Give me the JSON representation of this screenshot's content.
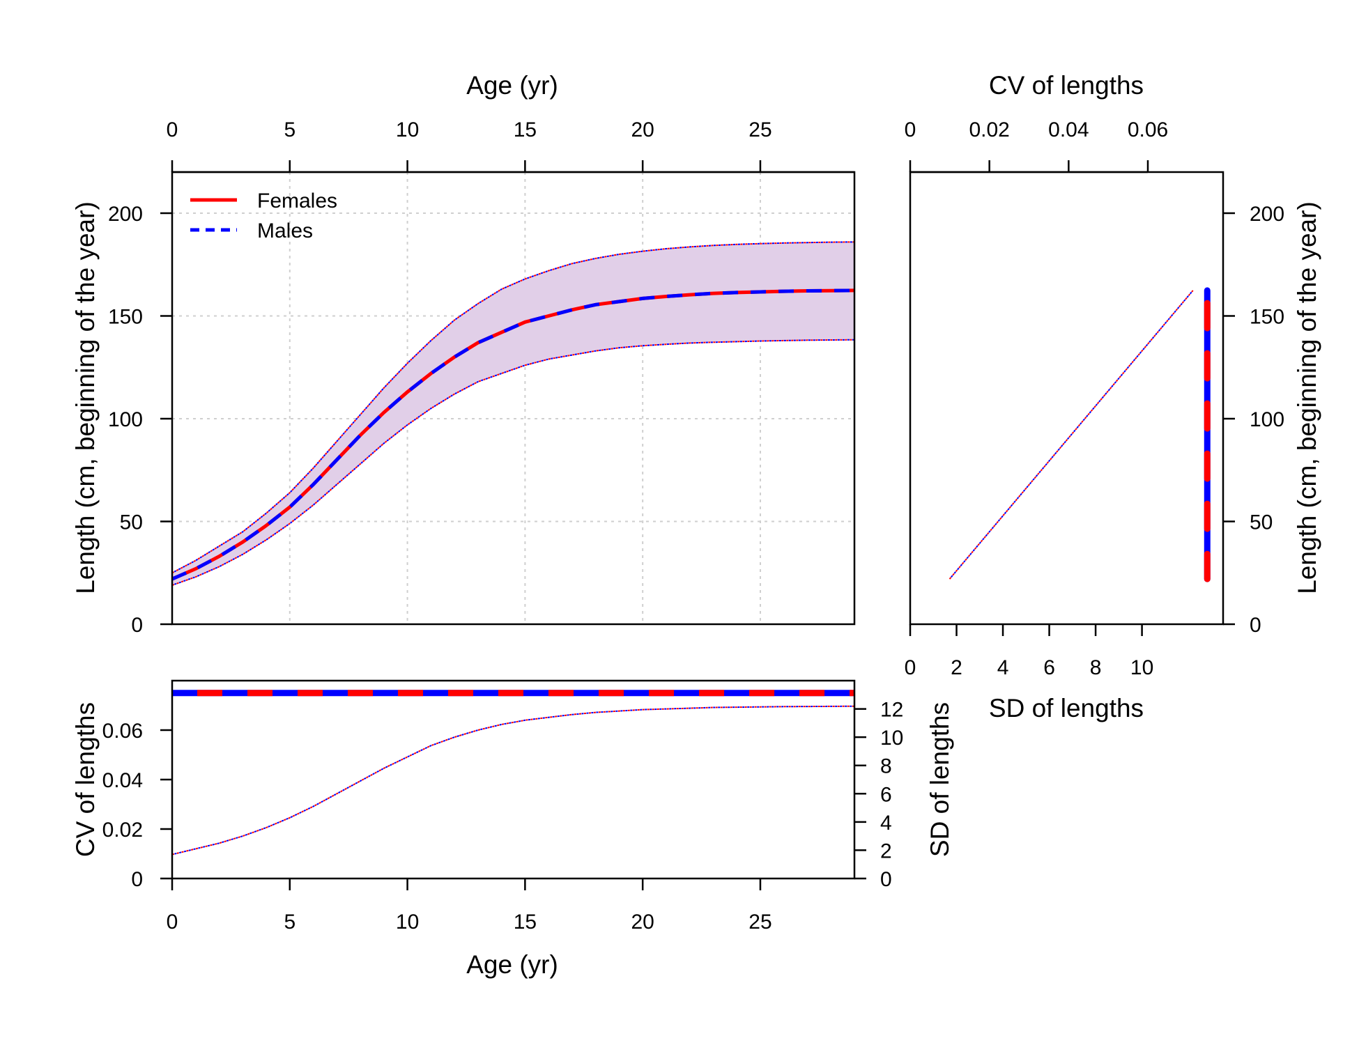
{
  "chart_data": [
    {
      "panel": "length-at-age",
      "type": "line",
      "xlabel_top": "Age (yr)",
      "ylabel": "Length (cm, beginning of the year)",
      "xlim": [
        0,
        29
      ],
      "ylim": [
        0,
        220
      ],
      "x_ticks": [
        0,
        5,
        10,
        15,
        20,
        25
      ],
      "y_ticks": [
        0,
        50,
        100,
        150,
        200
      ],
      "grid": true,
      "legend_position": "top-left",
      "legend": [
        {
          "label": "Females",
          "color": "#ff0000",
          "style": "solid"
        },
        {
          "label": "Males",
          "color": "#0000ff",
          "style": "dashed"
        }
      ],
      "band_color": "#e1cfe8",
      "x": [
        0,
        1,
        2,
        3,
        4,
        5,
        6,
        7,
        8,
        9,
        10,
        11,
        12,
        13,
        14,
        15,
        16,
        17,
        18,
        19,
        20,
        21,
        22,
        23,
        24,
        25,
        26,
        27,
        28,
        29
      ],
      "series": [
        {
          "name": "Females",
          "color": "#ff0000",
          "style": "solid",
          "values": [
            22,
            27,
            33,
            40,
            48,
            57,
            68,
            80,
            92,
            103,
            113,
            122,
            130,
            137,
            142,
            147,
            150,
            153,
            155.5,
            157,
            158.5,
            159.5,
            160.3,
            161,
            161.4,
            161.7,
            162,
            162.2,
            162.3,
            162.4
          ]
        },
        {
          "name": "Males",
          "color": "#0000ff",
          "style": "dashed",
          "values": [
            22,
            27,
            33,
            40,
            48,
            57,
            68,
            80,
            92,
            103,
            113,
            122,
            130,
            137,
            142,
            147,
            150,
            153,
            155.5,
            157,
            158.5,
            159.5,
            160.3,
            161,
            161.4,
            161.7,
            162,
            162.2,
            162.3,
            162.4
          ]
        },
        {
          "role": "upper-band",
          "color": "#0000ff",
          "style": "dotted",
          "values": [
            25,
            31,
            38,
            45,
            54,
            64,
            76,
            89,
            102,
            115,
            127,
            138,
            148,
            156,
            163,
            168,
            172,
            175.5,
            178,
            180,
            181.5,
            182.7,
            183.6,
            184.3,
            184.8,
            185.2,
            185.5,
            185.7,
            185.9,
            186
          ]
        },
        {
          "role": "lower-band",
          "color": "#0000ff",
          "style": "dotted",
          "values": [
            19,
            23,
            28,
            34,
            41,
            49,
            58,
            68,
            78,
            88,
            97,
            105,
            112,
            118,
            122,
            126,
            129,
            131,
            133,
            134.5,
            135.5,
            136.2,
            136.8,
            137.2,
            137.5,
            137.8,
            138,
            138.2,
            138.3,
            138.4
          ]
        }
      ]
    },
    {
      "panel": "cv-sd-at-age",
      "type": "line",
      "xlabel": "Age (yr)",
      "ylabel": "CV of lengths",
      "ylabel_right": "SD of lengths",
      "xlim": [
        0,
        29
      ],
      "ylim": [
        0,
        0.08
      ],
      "ylim_right": [
        0,
        14
      ],
      "x_ticks": [
        0,
        5,
        10,
        15,
        20,
        25
      ],
      "y_ticks": [
        "0",
        "0.02",
        "0.04",
        "0.06"
      ],
      "y_ticks_right": [
        0,
        2,
        4,
        6,
        8,
        10,
        12
      ],
      "grid": false,
      "cv_line": {
        "value": 0.075,
        "colors": [
          "#0000ff",
          "#ff0000"
        ],
        "style": "thick-dashed"
      },
      "x": [
        0,
        1,
        2,
        3,
        4,
        5,
        6,
        7,
        8,
        9,
        10,
        11,
        12,
        13,
        14,
        15,
        16,
        17,
        18,
        19,
        20,
        21,
        22,
        23,
        24,
        25,
        26,
        27,
        28,
        29
      ],
      "sd_values": [
        1.7,
        2.1,
        2.5,
        3.0,
        3.6,
        4.3,
        5.1,
        6.0,
        6.9,
        7.8,
        8.6,
        9.4,
        10.0,
        10.5,
        10.9,
        11.2,
        11.4,
        11.6,
        11.75,
        11.85,
        11.95,
        12.0,
        12.05,
        12.1,
        12.12,
        12.14,
        12.16,
        12.17,
        12.18,
        12.19
      ]
    },
    {
      "panel": "length-vs-sd-cv",
      "type": "line",
      "xlabel_top": "CV of lengths",
      "xlabel": "SD of lengths",
      "ylabel_right": "Length (cm, beginning of the year)",
      "xlim": [
        0,
        13.5
      ],
      "xlim_top": [
        0,
        0.079
      ],
      "ylim": [
        0,
        220
      ],
      "x_ticks": [
        0,
        2,
        4,
        6,
        8,
        10
      ],
      "x_ticks_top": [
        "0",
        "0.02",
        "0.04",
        "0.06"
      ],
      "y_ticks": [
        0,
        50,
        100,
        150,
        200
      ],
      "grid": false,
      "sd_line": {
        "points": [
          [
            1.7,
            22
          ],
          [
            12.2,
            162.4
          ]
        ],
        "color": "#0000ff",
        "style": "dotted"
      },
      "cv_line": {
        "value": 0.075,
        "y_range": [
          22,
          162.4
        ],
        "colors": [
          "#0000ff",
          "#ff0000"
        ],
        "style": "thick-dashed"
      }
    }
  ]
}
